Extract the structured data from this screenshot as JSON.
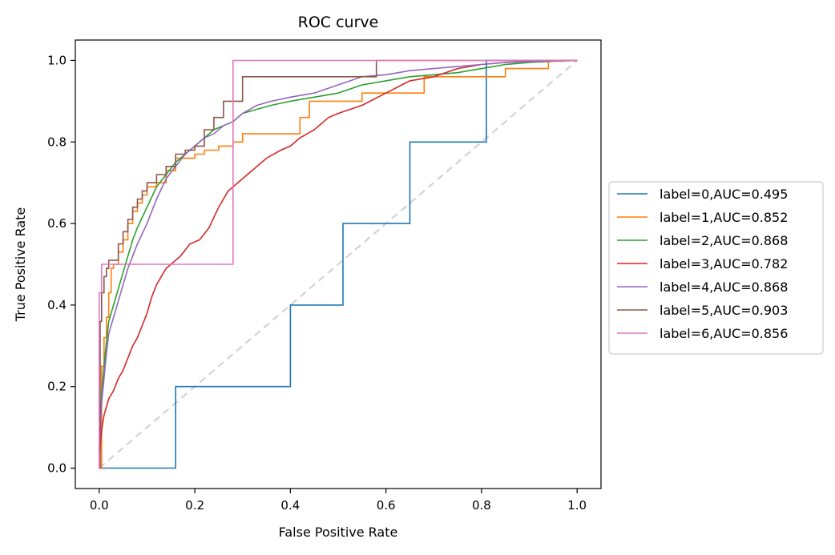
{
  "chart_data": {
    "type": "line",
    "title": "ROC curve",
    "xlabel": "False Positive Rate",
    "ylabel": "True Positive Rate",
    "xlim": [
      -0.05,
      1.05
    ],
    "ylim": [
      -0.05,
      1.05
    ],
    "xticks": [
      "0.0",
      "0.2",
      "0.4",
      "0.6",
      "0.8",
      "1.0"
    ],
    "yticks": [
      "0.0",
      "0.2",
      "0.4",
      "0.6",
      "0.8",
      "1.0"
    ],
    "grid": false,
    "legend_position": "center-right outside",
    "chance_line": {
      "x": [
        0,
        1
      ],
      "y": [
        0,
        1
      ],
      "color": "#d3d3d3",
      "dash": true
    },
    "series": [
      {
        "name": "label=0,AUC=0.495",
        "color": "#1f77b4",
        "step": true,
        "x": [
          0,
          0,
          0.16,
          0.16,
          0.4,
          0.4,
          0.51,
          0.51,
          0.65,
          0.65,
          0.81,
          0.81,
          1.0
        ],
        "y": [
          0,
          0,
          0,
          0.2,
          0.2,
          0.4,
          0.4,
          0.6,
          0.6,
          0.8,
          0.8,
          1.0,
          1.0
        ]
      },
      {
        "name": "label=1,AUC=0.852",
        "color": "#ff7f0e",
        "step": true,
        "x": [
          0,
          0.005,
          0.01,
          0.015,
          0.02,
          0.025,
          0.03,
          0.04,
          0.05,
          0.06,
          0.07,
          0.08,
          0.09,
          0.1,
          0.12,
          0.14,
          0.16,
          0.2,
          0.22,
          0.25,
          0.28,
          0.3,
          0.33,
          0.36,
          0.4,
          0.42,
          0.44,
          0.48,
          0.52,
          0.55,
          0.6,
          0.65,
          0.68,
          0.75,
          0.8,
          0.85,
          0.9,
          0.94,
          0.94,
          1.0
        ],
        "y": [
          0,
          0.25,
          0.32,
          0.37,
          0.43,
          0.49,
          0.5,
          0.53,
          0.56,
          0.6,
          0.63,
          0.65,
          0.67,
          0.69,
          0.7,
          0.73,
          0.76,
          0.77,
          0.78,
          0.79,
          0.8,
          0.82,
          0.82,
          0.82,
          0.82,
          0.86,
          0.9,
          0.9,
          0.9,
          0.92,
          0.92,
          0.92,
          0.96,
          0.96,
          0.96,
          0.98,
          0.98,
          0.98,
          1.0,
          1.0
        ]
      },
      {
        "name": "label=2,AUC=0.868",
        "color": "#2ca02c",
        "x": [
          0,
          0.002,
          0.005,
          0.01,
          0.015,
          0.02,
          0.03,
          0.04,
          0.05,
          0.06,
          0.07,
          0.08,
          0.1,
          0.12,
          0.14,
          0.16,
          0.18,
          0.2,
          0.22,
          0.24,
          0.26,
          0.28,
          0.3,
          0.33,
          0.36,
          0.4,
          0.45,
          0.5,
          0.55,
          0.6,
          0.65,
          0.7,
          0.75,
          0.8,
          0.85,
          0.9,
          0.95,
          1.0
        ],
        "y": [
          0,
          0.1,
          0.18,
          0.25,
          0.31,
          0.36,
          0.4,
          0.44,
          0.48,
          0.52,
          0.56,
          0.59,
          0.64,
          0.69,
          0.72,
          0.75,
          0.77,
          0.79,
          0.81,
          0.83,
          0.84,
          0.85,
          0.87,
          0.88,
          0.89,
          0.9,
          0.91,
          0.92,
          0.94,
          0.95,
          0.96,
          0.965,
          0.97,
          0.98,
          0.99,
          0.995,
          0.998,
          1.0
        ]
      },
      {
        "name": "label=3,AUC=0.782",
        "color": "#d62728",
        "x": [
          0,
          0.003,
          0.006,
          0.01,
          0.015,
          0.02,
          0.03,
          0.04,
          0.05,
          0.06,
          0.07,
          0.08,
          0.09,
          0.1,
          0.11,
          0.12,
          0.13,
          0.14,
          0.15,
          0.17,
          0.19,
          0.21,
          0.23,
          0.25,
          0.27,
          0.3,
          0.32,
          0.35,
          0.38,
          0.4,
          0.42,
          0.45,
          0.48,
          0.5,
          0.55,
          0.6,
          0.65,
          0.7,
          0.75,
          0.8,
          0.85,
          0.9,
          1.0
        ],
        "y": [
          0,
          0.07,
          0.1,
          0.13,
          0.15,
          0.17,
          0.19,
          0.22,
          0.24,
          0.27,
          0.3,
          0.32,
          0.35,
          0.38,
          0.42,
          0.45,
          0.47,
          0.49,
          0.5,
          0.52,
          0.55,
          0.56,
          0.59,
          0.64,
          0.68,
          0.71,
          0.73,
          0.76,
          0.78,
          0.79,
          0.81,
          0.83,
          0.86,
          0.87,
          0.89,
          0.92,
          0.95,
          0.96,
          0.98,
          0.99,
          0.995,
          0.998,
          1.0
        ]
      },
      {
        "name": "label=4,AUC=0.868",
        "color": "#9467bd",
        "x": [
          0,
          0.002,
          0.005,
          0.01,
          0.015,
          0.02,
          0.03,
          0.04,
          0.05,
          0.06,
          0.07,
          0.08,
          0.1,
          0.12,
          0.14,
          0.16,
          0.18,
          0.2,
          0.22,
          0.24,
          0.26,
          0.28,
          0.3,
          0.33,
          0.36,
          0.4,
          0.45,
          0.5,
          0.55,
          0.6,
          0.65,
          0.7,
          0.75,
          0.8,
          0.85,
          0.9,
          0.95,
          1.0
        ],
        "y": [
          0,
          0.08,
          0.16,
          0.22,
          0.28,
          0.33,
          0.37,
          0.41,
          0.45,
          0.49,
          0.52,
          0.55,
          0.6,
          0.66,
          0.71,
          0.74,
          0.77,
          0.79,
          0.81,
          0.82,
          0.84,
          0.85,
          0.87,
          0.89,
          0.9,
          0.91,
          0.92,
          0.94,
          0.96,
          0.965,
          0.975,
          0.98,
          0.985,
          0.99,
          0.995,
          0.997,
          0.999,
          1.0
        ]
      },
      {
        "name": "label=5,AUC=0.903",
        "color": "#8c564b",
        "step": true,
        "x": [
          0,
          0.002,
          0.005,
          0.01,
          0.015,
          0.02,
          0.03,
          0.04,
          0.05,
          0.06,
          0.07,
          0.08,
          0.09,
          0.1,
          0.12,
          0.14,
          0.16,
          0.18,
          0.2,
          0.22,
          0.24,
          0.26,
          0.28,
          0.3,
          0.35,
          0.4,
          0.45,
          0.5,
          0.55,
          0.58,
          0.58,
          1.0
        ],
        "y": [
          0,
          0.36,
          0.43,
          0.47,
          0.49,
          0.51,
          0.51,
          0.55,
          0.58,
          0.61,
          0.64,
          0.66,
          0.68,
          0.7,
          0.72,
          0.74,
          0.77,
          0.78,
          0.79,
          0.83,
          0.86,
          0.9,
          0.9,
          0.96,
          0.96,
          0.96,
          0.96,
          0.96,
          0.96,
          0.98,
          1.0,
          1.0
        ]
      },
      {
        "name": "label=6,AUC=0.856",
        "color": "#e377c2",
        "step": true,
        "x": [
          0,
          0,
          0.005,
          0.005,
          0.28,
          0.28,
          1.0
        ],
        "y": [
          0,
          0.43,
          0.43,
          0.5,
          0.5,
          1.0,
          1.0
        ]
      }
    ]
  }
}
